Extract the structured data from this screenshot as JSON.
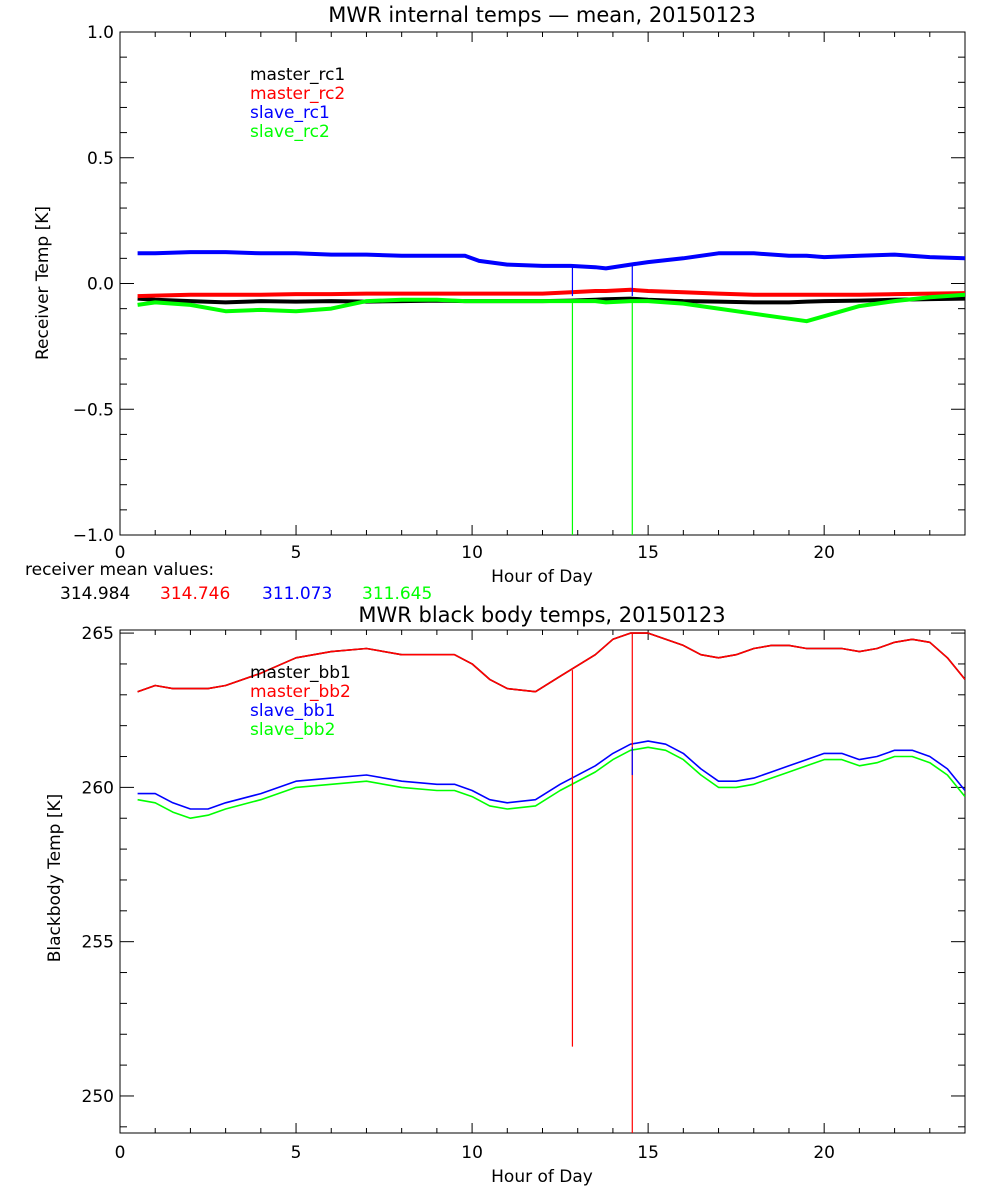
{
  "colors": {
    "black": "#000000",
    "red": "#ff0000",
    "blue": "#0000ff",
    "green": "#00ff00"
  },
  "receiver_mean": {
    "label": "receiver mean values:",
    "values": [
      "314.984",
      "314.746",
      "311.073",
      "311.645"
    ]
  },
  "chart_data": [
    {
      "type": "line",
      "title": "MWR internal temps — mean, 20150123",
      "xlabel": "Hour of Day",
      "ylabel": "Receiver Temp [K]",
      "xlim": [
        0,
        24
      ],
      "ylim": [
        -1.0,
        1.0
      ],
      "xticks": [
        0,
        5,
        10,
        15,
        20
      ],
      "xtick_labels": [
        "0",
        "5",
        "10",
        "15",
        "20"
      ],
      "yticks": [
        -1.0,
        -0.5,
        0.0,
        0.5,
        1.0
      ],
      "ytick_labels": [
        "−1.0",
        "−0.5",
        "0.0",
        "0.5",
        "1.0"
      ],
      "x": [
        0.5,
        1,
        2,
        3,
        4,
        5,
        6,
        7,
        8,
        9,
        9.8,
        10.2,
        11,
        12,
        12.8,
        13.5,
        13.8,
        14.5,
        15,
        16,
        17,
        18,
        19,
        19.5,
        20,
        21,
        22,
        23,
        24
      ],
      "series": [
        {
          "name": "master_rc1",
          "color": "black",
          "values": [
            -0.06,
            -0.065,
            -0.07,
            -0.075,
            -0.07,
            -0.072,
            -0.07,
            -0.072,
            -0.07,
            -0.068,
            -0.07,
            -0.07,
            -0.07,
            -0.07,
            -0.068,
            -0.065,
            -0.063,
            -0.06,
            -0.065,
            -0.07,
            -0.072,
            -0.075,
            -0.075,
            -0.072,
            -0.07,
            -0.068,
            -0.065,
            -0.062,
            -0.06
          ]
        },
        {
          "name": "master_rc2",
          "color": "red",
          "values": [
            -0.05,
            -0.048,
            -0.045,
            -0.045,
            -0.045,
            -0.042,
            -0.042,
            -0.04,
            -0.04,
            -0.04,
            -0.04,
            -0.04,
            -0.04,
            -0.04,
            -0.035,
            -0.03,
            -0.03,
            -0.025,
            -0.03,
            -0.035,
            -0.04,
            -0.045,
            -0.045,
            -0.045,
            -0.045,
            -0.045,
            -0.042,
            -0.04,
            -0.038
          ]
        },
        {
          "name": "slave_rc1",
          "color": "blue",
          "values": [
            0.12,
            0.12,
            0.125,
            0.125,
            0.12,
            0.12,
            0.115,
            0.115,
            0.11,
            0.11,
            0.11,
            0.09,
            0.075,
            0.07,
            0.07,
            0.065,
            0.06,
            0.075,
            0.085,
            0.1,
            0.12,
            0.12,
            0.11,
            0.11,
            0.105,
            0.11,
            0.115,
            0.105,
            0.1
          ]
        },
        {
          "name": "slave_rc2",
          "color": "green",
          "values": [
            -0.085,
            -0.075,
            -0.085,
            -0.11,
            -0.105,
            -0.11,
            -0.1,
            -0.07,
            -0.065,
            -0.065,
            -0.07,
            -0.07,
            -0.07,
            -0.07,
            -0.07,
            -0.07,
            -0.075,
            -0.07,
            -0.07,
            -0.08,
            -0.1,
            -0.12,
            -0.14,
            -0.15,
            -0.13,
            -0.09,
            -0.07,
            -0.055,
            -0.045
          ]
        }
      ],
      "spikes": [
        {
          "color": "green",
          "x": 12.85,
          "from": -0.07,
          "to": -1.0
        },
        {
          "color": "green",
          "x": 14.55,
          "from": -0.07,
          "to": -1.0
        },
        {
          "color": "blue",
          "x": 12.85,
          "from": 0.07,
          "to": -0.05
        },
        {
          "color": "blue",
          "x": 14.55,
          "from": 0.08,
          "to": -0.05
        }
      ],
      "legend": {
        "placement": "upper-left",
        "entries": [
          {
            "label": "master_rc1",
            "color": "black"
          },
          {
            "label": "master_rc2",
            "color": "red"
          },
          {
            "label": "slave_rc1",
            "color": "blue"
          },
          {
            "label": "slave_rc2",
            "color": "green"
          }
        ]
      }
    },
    {
      "type": "line",
      "title": "MWR black body temps, 20150123",
      "xlabel": "Hour of Day",
      "ylabel": "Blackbody Temp [K]",
      "xlim": [
        0,
        24
      ],
      "ylim": [
        248.8,
        265.1
      ],
      "xticks": [
        0,
        5,
        10,
        15,
        20
      ],
      "xtick_labels": [
        "0",
        "5",
        "10",
        "15",
        "20"
      ],
      "yticks": [
        250,
        255,
        260,
        265
      ],
      "ytick_labels": [
        "250",
        "255",
        "260",
        "265"
      ],
      "x": [
        0.5,
        1,
        1.5,
        2,
        2.5,
        3,
        4,
        5,
        6,
        7,
        8,
        9,
        9.5,
        10,
        10.5,
        11,
        11.8,
        12.5,
        13.5,
        14,
        14.5,
        15,
        15.5,
        16,
        16.5,
        17,
        17.5,
        18,
        18.5,
        19,
        19.5,
        20,
        20.5,
        21,
        21.5,
        22,
        22.5,
        23,
        23.5,
        24
      ],
      "series": [
        {
          "name": "master_bb1",
          "color": "black",
          "values": [
            263.1,
            263.3,
            263.2,
            263.2,
            263.2,
            263.3,
            263.7,
            264.2,
            264.4,
            264.5,
            264.3,
            264.3,
            264.3,
            264.0,
            263.5,
            263.2,
            263.1,
            263.6,
            264.3,
            264.8,
            265.0,
            265.0,
            264.8,
            264.6,
            264.3,
            264.2,
            264.3,
            264.5,
            264.6,
            264.6,
            264.5,
            264.5,
            264.5,
            264.4,
            264.5,
            264.7,
            264.8,
            264.7,
            264.2,
            263.5
          ]
        },
        {
          "name": "master_bb2",
          "color": "red",
          "values": [
            263.1,
            263.3,
            263.2,
            263.2,
            263.2,
            263.3,
            263.7,
            264.2,
            264.4,
            264.5,
            264.3,
            264.3,
            264.3,
            264.0,
            263.5,
            263.2,
            263.1,
            263.6,
            264.3,
            264.8,
            265.0,
            265.0,
            264.8,
            264.6,
            264.3,
            264.2,
            264.3,
            264.5,
            264.6,
            264.6,
            264.5,
            264.5,
            264.5,
            264.4,
            264.5,
            264.7,
            264.8,
            264.7,
            264.2,
            263.5
          ]
        },
        {
          "name": "slave_bb1",
          "color": "blue",
          "values": [
            259.8,
            259.8,
            259.5,
            259.3,
            259.3,
            259.5,
            259.8,
            260.2,
            260.3,
            260.4,
            260.2,
            260.1,
            260.1,
            259.9,
            259.6,
            259.5,
            259.6,
            260.1,
            260.7,
            261.1,
            261.4,
            261.5,
            261.4,
            261.1,
            260.6,
            260.2,
            260.2,
            260.3,
            260.5,
            260.7,
            260.9,
            261.1,
            261.1,
            260.9,
            261.0,
            261.2,
            261.2,
            261.0,
            260.6,
            259.9
          ]
        },
        {
          "name": "slave_bb2",
          "color": "green",
          "values": [
            259.6,
            259.5,
            259.2,
            259.0,
            259.1,
            259.3,
            259.6,
            260.0,
            260.1,
            260.2,
            260.0,
            259.9,
            259.9,
            259.7,
            259.4,
            259.3,
            259.4,
            259.9,
            260.5,
            260.9,
            261.2,
            261.3,
            261.2,
            260.9,
            260.4,
            260.0,
            260.0,
            260.1,
            260.3,
            260.5,
            260.7,
            260.9,
            260.9,
            260.7,
            260.8,
            261.0,
            261.0,
            260.8,
            260.4,
            259.7
          ]
        }
      ],
      "spikes": [
        {
          "color": "red",
          "x": 12.85,
          "from": 263.8,
          "to": 251.6
        },
        {
          "color": "red",
          "x": 14.55,
          "from": 265.0,
          "to": 248.8
        },
        {
          "color": "blue",
          "x": 14.55,
          "from": 261.3,
          "to": 260.4
        }
      ],
      "legend": {
        "placement": "upper-left",
        "entries": [
          {
            "label": "master_bb1",
            "color": "black"
          },
          {
            "label": "master_bb2",
            "color": "red"
          },
          {
            "label": "slave_bb1",
            "color": "blue"
          },
          {
            "label": "slave_bb2",
            "color": "green"
          }
        ]
      }
    }
  ]
}
